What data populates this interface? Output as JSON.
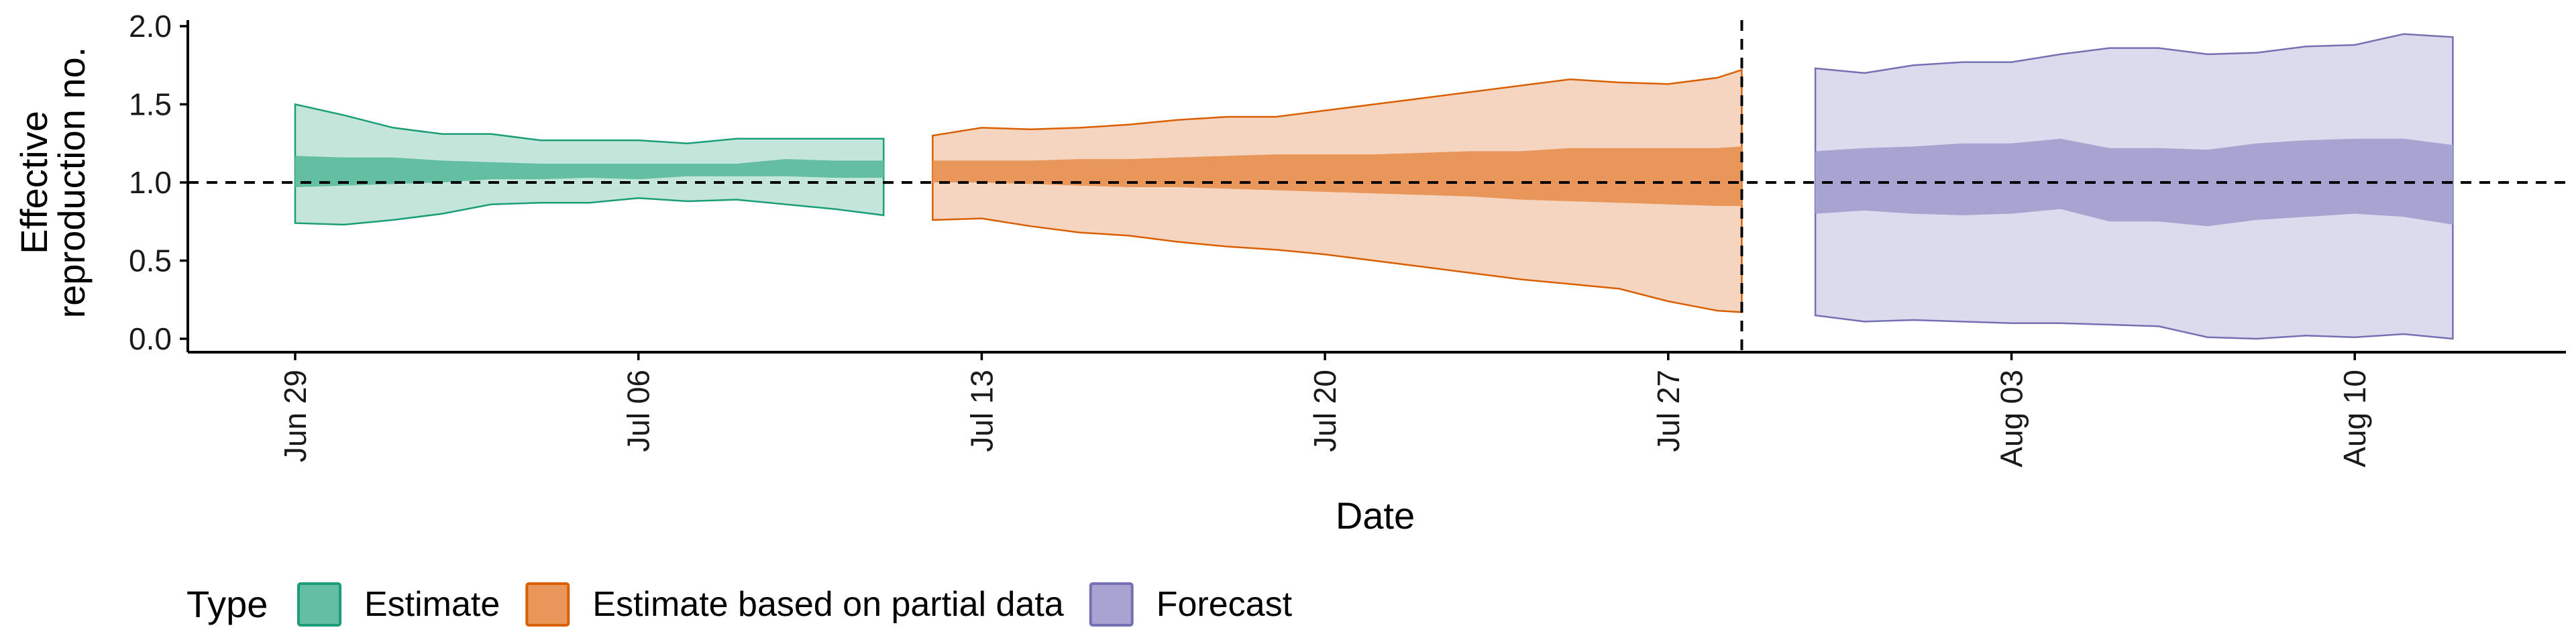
{
  "chart_data": {
    "type": "area",
    "xlabel": "Date",
    "ylabel_lines": [
      "Effective",
      "reproduction no."
    ],
    "x_start": "2020-06-29",
    "x_ticks": [
      "Jun 29",
      "Jul 06",
      "Jul 13",
      "Jul 20",
      "Jul 27",
      "Aug 03",
      "Aug 10"
    ],
    "ylim": [
      -0.05,
      2.05
    ],
    "y_ticks": [
      "0.0",
      "0.5",
      "1.0",
      "1.5",
      "2.0"
    ],
    "reference_line": 1.0,
    "forecast_divider_date": "2020-07-28.5",
    "legend_title": "Type",
    "legend_position": "bottom",
    "series": [
      {
        "name": "Estimate",
        "color": "#1b9e77",
        "fill_inner": "#64bfa2",
        "fill_outer": "#c4e6da",
        "dates": [
          "Jun 29",
          "Jun 30",
          "Jul 01",
          "Jul 02",
          "Jul 03",
          "Jul 04",
          "Jul 05",
          "Jul 06",
          "Jul 07",
          "Jul 08",
          "Jul 09",
          "Jul 10",
          "Jul 11"
        ],
        "lower_90": [
          0.74,
          0.73,
          0.76,
          0.8,
          0.86,
          0.87,
          0.87,
          0.9,
          0.88,
          0.89,
          0.86,
          0.83,
          0.79
        ],
        "upper_90": [
          1.5,
          1.43,
          1.35,
          1.31,
          1.31,
          1.27,
          1.27,
          1.27,
          1.25,
          1.28,
          1.28,
          1.28,
          1.28
        ],
        "lower_50": [
          0.97,
          0.98,
          0.99,
          1.0,
          1.02,
          1.02,
          1.03,
          1.02,
          1.04,
          1.04,
          1.04,
          1.03,
          1.03
        ],
        "upper_50": [
          1.17,
          1.16,
          1.16,
          1.14,
          1.13,
          1.12,
          1.12,
          1.12,
          1.12,
          1.12,
          1.15,
          1.14,
          1.14
        ]
      },
      {
        "name": "Estimate based on partial data",
        "color": "#d95f02",
        "fill_inner": "#e8965a",
        "fill_outer": "#f5d5bf",
        "dates": [
          "Jul 12",
          "Jul 13",
          "Jul 14",
          "Jul 15",
          "Jul 16",
          "Jul 17",
          "Jul 18",
          "Jul 19",
          "Jul 20",
          "Jul 21",
          "Jul 22",
          "Jul 23",
          "Jul 24",
          "Jul 25",
          "Jul 26",
          "Jul 27",
          "Jul 28",
          "Jul 28.5"
        ],
        "lower_90": [
          0.76,
          0.77,
          0.72,
          0.68,
          0.66,
          0.62,
          0.59,
          0.57,
          0.54,
          0.5,
          0.46,
          0.42,
          0.38,
          0.35,
          0.32,
          0.24,
          0.18,
          0.17
        ],
        "upper_90": [
          1.3,
          1.35,
          1.34,
          1.35,
          1.37,
          1.4,
          1.42,
          1.42,
          1.46,
          1.5,
          1.54,
          1.58,
          1.62,
          1.66,
          1.64,
          1.63,
          1.67,
          1.72
        ],
        "lower_50": [
          1.0,
          1.0,
          0.99,
          0.98,
          0.97,
          0.97,
          0.96,
          0.95,
          0.94,
          0.93,
          0.92,
          0.91,
          0.89,
          0.88,
          0.87,
          0.86,
          0.85,
          0.85
        ],
        "upper_50": [
          1.14,
          1.14,
          1.14,
          1.15,
          1.15,
          1.16,
          1.17,
          1.18,
          1.18,
          1.18,
          1.19,
          1.2,
          1.2,
          1.22,
          1.22,
          1.22,
          1.22,
          1.23
        ]
      },
      {
        "name": "Forecast",
        "color": "#7570b3",
        "fill_inner": "#a8a4d2",
        "fill_outer": "#dcdbed",
        "dates": [
          "Jul 30",
          "Jul 31",
          "Aug 01",
          "Aug 02",
          "Aug 03",
          "Aug 04",
          "Aug 05",
          "Aug 06",
          "Aug 07",
          "Aug 08",
          "Aug 09",
          "Aug 10",
          "Aug 11",
          "Aug 12"
        ],
        "lower_90": [
          0.15,
          0.11,
          0.12,
          0.11,
          0.1,
          0.1,
          0.09,
          0.08,
          0.01,
          0.0,
          0.02,
          0.01,
          0.03,
          0.0
        ],
        "upper_90": [
          1.73,
          1.7,
          1.75,
          1.77,
          1.77,
          1.82,
          1.86,
          1.86,
          1.82,
          1.83,
          1.87,
          1.88,
          1.95,
          1.93
        ],
        "lower_50": [
          0.8,
          0.82,
          0.8,
          0.79,
          0.8,
          0.83,
          0.75,
          0.75,
          0.72,
          0.76,
          0.78,
          0.8,
          0.78,
          0.73
        ],
        "upper_50": [
          1.2,
          1.22,
          1.23,
          1.25,
          1.25,
          1.28,
          1.22,
          1.22,
          1.21,
          1.25,
          1.27,
          1.28,
          1.28,
          1.24
        ]
      }
    ]
  }
}
